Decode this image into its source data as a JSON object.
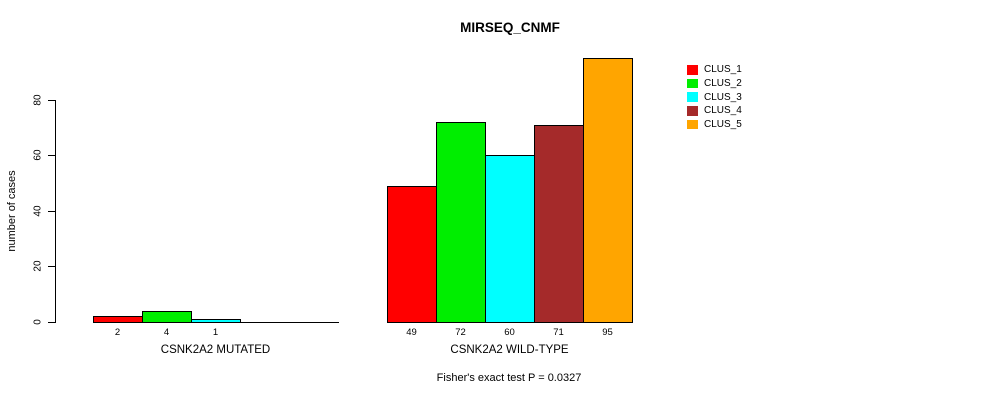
{
  "chart_data": {
    "type": "bar",
    "title": "MIRSEQ_CNMF",
    "xlabel": "",
    "ylabel": "number of cases",
    "yticks": [
      0,
      20,
      40,
      60,
      80
    ],
    "ylim": [
      0,
      97
    ],
    "grid": false,
    "legend_position": "right",
    "categories": [
      "CSNK2A2 MUTATED",
      "CSNK2A2 WILD-TYPE"
    ],
    "series": [
      {
        "name": "CLUS_1",
        "color": "#FF0000",
        "values": [
          2,
          49
        ]
      },
      {
        "name": "CLUS_2",
        "color": "#00EE00",
        "values": [
          4,
          72
        ]
      },
      {
        "name": "CLUS_3",
        "color": "#00FFFF",
        "values": [
          1,
          60
        ]
      },
      {
        "name": "CLUS_4",
        "color": "#A52A2A",
        "values": [
          0,
          71
        ]
      },
      {
        "name": "CLUS_5",
        "color": "#FFA500",
        "values": [
          0,
          95
        ]
      }
    ],
    "groups": [
      {
        "label": "CSNK2A2 MUTATED",
        "values": [
          2,
          4,
          1,
          0,
          0
        ],
        "value_labels": [
          "2",
          "4",
          "1",
          "",
          ""
        ]
      },
      {
        "label": "CSNK2A2 WILD-TYPE",
        "values": [
          49,
          72,
          60,
          71,
          95
        ],
        "value_labels": [
          "49",
          "72",
          "60",
          "71",
          "95"
        ]
      }
    ],
    "annotation": "Fisher's exact test P = 0.0327"
  }
}
